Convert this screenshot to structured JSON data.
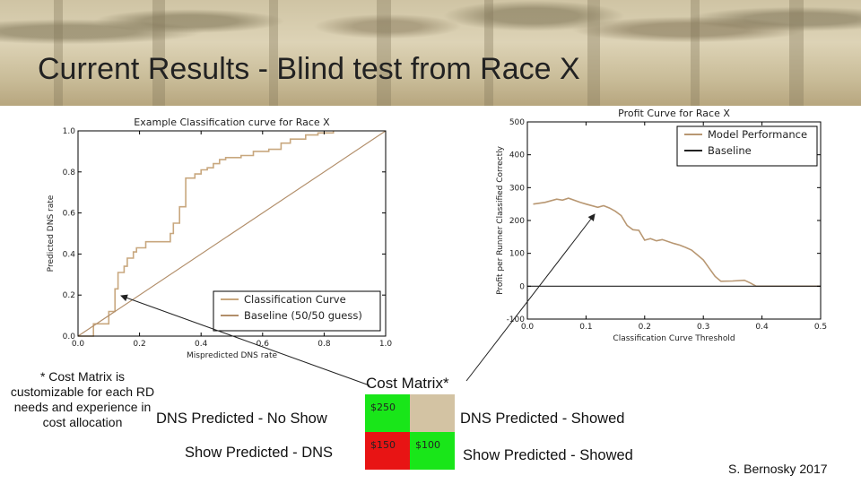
{
  "slide": {
    "title": "Current Results - Blind test from Race X",
    "credit": "S. Bernosky 2017",
    "note": "* Cost Matrix is customizable for each RD needs and experience in cost allocation"
  },
  "cost_matrix": {
    "title": "Cost Matrix*",
    "row_labels": [
      "DNS Predicted - No Show",
      "Show Predicted - DNS"
    ],
    "col_labels": [
      "DNS Predicted - Showed",
      "Show Predicted - Showed"
    ],
    "cells": [
      {
        "value": "$250",
        "color": "#19e619"
      },
      {
        "value": "",
        "color": "#d3c3a3"
      },
      {
        "value": "$150",
        "color": "#e81414"
      },
      {
        "value": "$100",
        "color": "#19e619"
      }
    ]
  },
  "chart_data": [
    {
      "type": "line",
      "title": "Example Classification curve for Race X",
      "xlabel": "Mispredicted DNS rate",
      "ylabel": "Predicted DNS rate",
      "xlim": [
        0.0,
        1.0
      ],
      "ylim": [
        0.0,
        1.0
      ],
      "xticks": [
        "0.0",
        "0.2",
        "0.4",
        "0.6",
        "0.8",
        "1.0"
      ],
      "yticks": [
        "0.0",
        "0.2",
        "0.4",
        "0.6",
        "0.8",
        "1.0"
      ],
      "legend_position": "bottom-right",
      "series": [
        {
          "name": "Classification Curve",
          "color": "#c8a77e",
          "x": [
            0.0,
            0.05,
            0.05,
            0.1,
            0.1,
            0.12,
            0.12,
            0.13,
            0.13,
            0.15,
            0.15,
            0.16,
            0.16,
            0.18,
            0.18,
            0.19,
            0.19,
            0.22,
            0.22,
            0.3,
            0.3,
            0.31,
            0.31,
            0.33,
            0.33,
            0.35,
            0.35,
            0.38,
            0.38,
            0.4,
            0.4,
            0.42,
            0.42,
            0.44,
            0.44,
            0.46,
            0.46,
            0.48,
            0.48,
            0.53,
            0.53,
            0.57,
            0.57,
            0.62,
            0.62,
            0.66,
            0.66,
            0.69,
            0.69,
            0.74,
            0.74,
            0.78,
            0.78,
            0.83,
            0.83
          ],
          "y": [
            0.0,
            0.0,
            0.06,
            0.06,
            0.12,
            0.12,
            0.23,
            0.23,
            0.31,
            0.31,
            0.34,
            0.34,
            0.38,
            0.38,
            0.41,
            0.41,
            0.43,
            0.43,
            0.46,
            0.46,
            0.5,
            0.5,
            0.55,
            0.55,
            0.63,
            0.63,
            0.77,
            0.77,
            0.79,
            0.79,
            0.81,
            0.81,
            0.82,
            0.82,
            0.84,
            0.84,
            0.86,
            0.86,
            0.87,
            0.87,
            0.88,
            0.88,
            0.9,
            0.9,
            0.91,
            0.91,
            0.94,
            0.94,
            0.96,
            0.96,
            0.98,
            0.98,
            0.99,
            0.99,
            1.0
          ]
        },
        {
          "name": "Baseline (50/50 guess)",
          "color": "#b28e6a",
          "x": [
            0.0,
            1.0
          ],
          "y": [
            0.0,
            1.0
          ]
        }
      ]
    },
    {
      "type": "line",
      "title": "Profit Curve for Race X",
      "xlabel": "Classification Curve Threshold",
      "ylabel": "Profit per Runner Classified Correctly",
      "xlim": [
        0.0,
        0.5
      ],
      "ylim": [
        -100,
        500
      ],
      "xticks": [
        "0.0",
        "0.1",
        "0.2",
        "0.3",
        "0.4",
        "0.5"
      ],
      "yticks": [
        "-100",
        "0",
        "100",
        "200",
        "300",
        "400",
        "500"
      ],
      "legend_position": "top-right",
      "series": [
        {
          "name": "Model Performance",
          "color": "#b89772",
          "x": [
            0.01,
            0.03,
            0.05,
            0.06,
            0.07,
            0.09,
            0.1,
            0.12,
            0.13,
            0.14,
            0.15,
            0.16,
            0.17,
            0.18,
            0.19,
            0.2,
            0.21,
            0.22,
            0.23,
            0.25,
            0.26,
            0.27,
            0.28,
            0.29,
            0.3,
            0.31,
            0.32,
            0.33,
            0.35,
            0.37,
            0.38,
            0.39,
            0.4,
            0.45,
            0.5
          ],
          "y": [
            250,
            255,
            265,
            262,
            268,
            255,
            250,
            240,
            245,
            238,
            228,
            215,
            185,
            172,
            170,
            140,
            145,
            138,
            142,
            130,
            125,
            118,
            110,
            95,
            80,
            55,
            30,
            15,
            16,
            18,
            10,
            0,
            0,
            0,
            0
          ]
        },
        {
          "name": "Baseline",
          "color": "#222222",
          "x": [
            0.0,
            0.5
          ],
          "y": [
            0,
            0
          ]
        }
      ]
    }
  ]
}
